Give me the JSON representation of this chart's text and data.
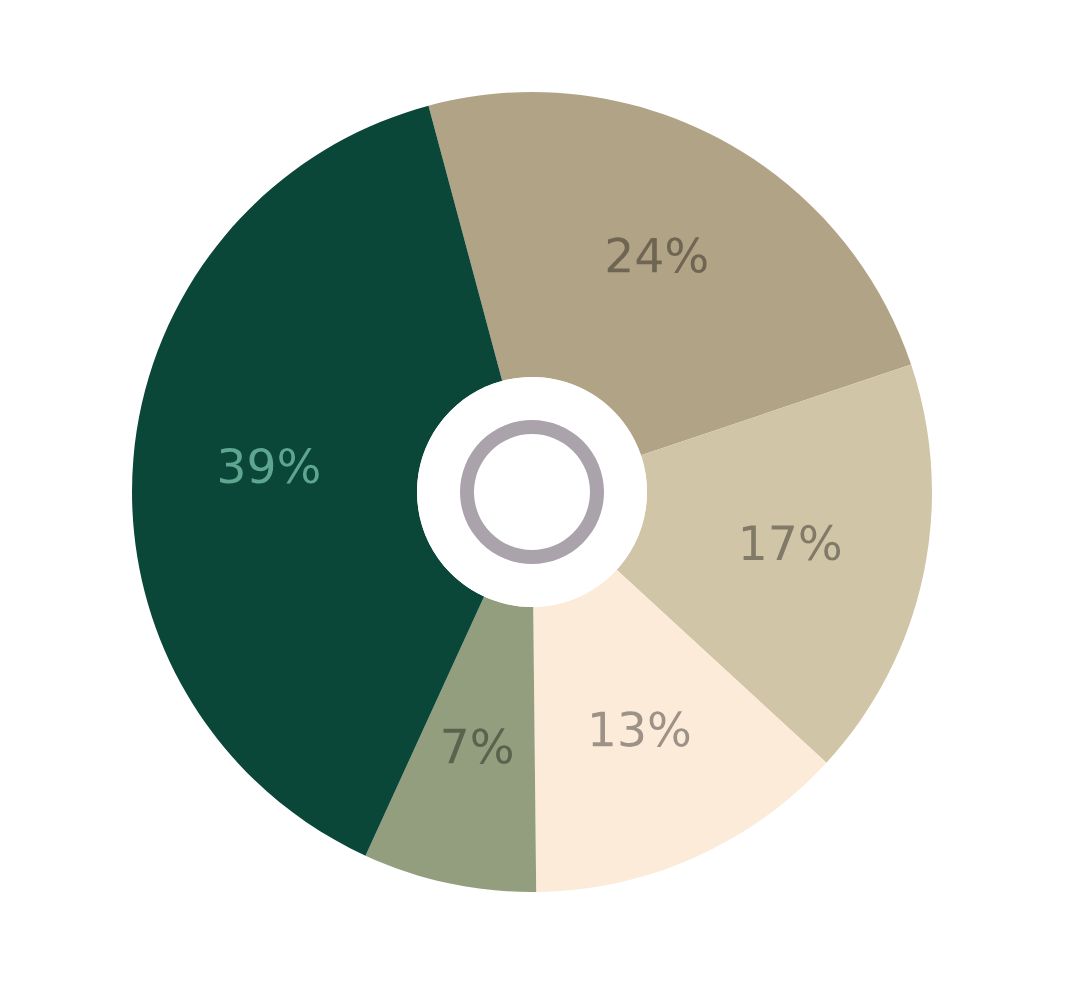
{
  "chart_data": {
    "type": "donut",
    "categories": [
      null,
      null,
      null,
      null,
      null
    ],
    "values": [
      24,
      17,
      13,
      7,
      39
    ],
    "colors": [
      "#b1a385",
      "#d1c5a8",
      "#fdebd9",
      "#939e7e",
      "#0a4739"
    ],
    "value_labels": [
      "24%",
      "17%",
      "13%",
      "7%",
      "39%"
    ]
  }
}
